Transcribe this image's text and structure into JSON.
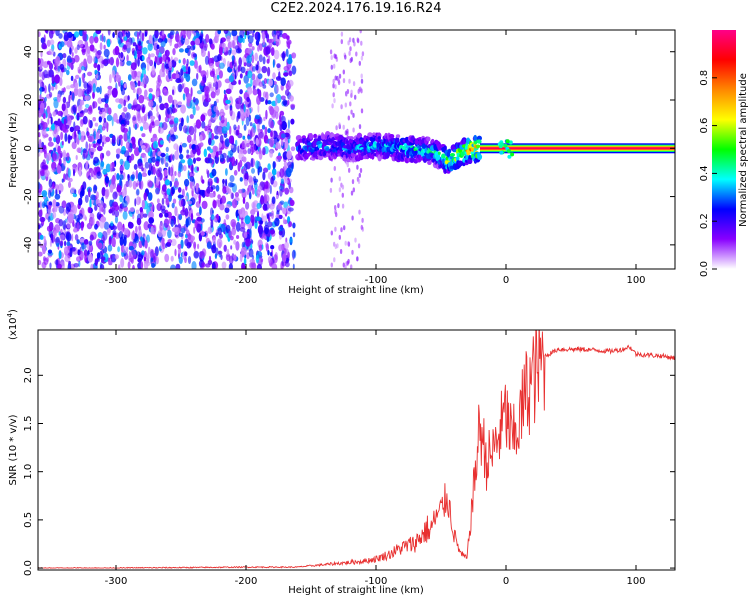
{
  "title": "C2E2.2024.176.19.16.R24",
  "chart_data": [
    {
      "type": "heatmap",
      "xlabel": "Height of straight line (km)",
      "ylabel": "Frequency (Hz)",
      "xlim": [
        -360,
        130
      ],
      "ylim": [
        -50,
        49
      ],
      "xticks": [
        -300,
        -200,
        -100,
        0,
        100
      ],
      "xtick_labels": [
        "-300",
        "-200",
        "-100",
        "0",
        "100"
      ],
      "yticks": [
        -40,
        -20,
        0,
        20,
        40
      ],
      "ytick_labels": [
        "-40",
        "-20",
        "0",
        "20",
        "40"
      ],
      "noise_region_x": [
        -360,
        -163
      ],
      "signal_trace": {
        "x": [
          -160,
          -140,
          -120,
          -100,
          -80,
          -60,
          -50,
          -45,
          -40,
          -30,
          -20,
          -10,
          0,
          50,
          100,
          130
        ],
        "y": [
          0,
          1,
          0,
          1,
          0,
          -1,
          -3,
          -5,
          -4,
          -1,
          0,
          0,
          0,
          0,
          0,
          0
        ],
        "amplitude": [
          0.3,
          0.35,
          0.35,
          0.4,
          0.45,
          0.45,
          0.5,
          0.65,
          0.7,
          0.7,
          0.9,
          0.95,
          0.95,
          0.95,
          0.95,
          0.95
        ]
      },
      "colorbar": {
        "label": "Normalized spectral amplitude",
        "range": [
          0.0,
          1.0
        ],
        "ticks": [
          0.0,
          0.2,
          0.4,
          0.6,
          0.8
        ],
        "tick_labels": [
          "0.0",
          "0.2",
          "0.4",
          "0.6",
          "0.8"
        ],
        "colors": [
          "#ffffff",
          "#8800ff",
          "#0000ff",
          "#00ffff",
          "#00ff00",
          "#ffff00",
          "#ff8800",
          "#ff0000",
          "#ff0088"
        ]
      },
      "grid": false
    },
    {
      "type": "line",
      "xlabel": "Height of straight line (km)",
      "ylabel": "SNR (10 * v/v)",
      "y_multiplier_label": "(x10",
      "y_multiplier_exp": "4",
      "y_multiplier_close": ")",
      "xlim": [
        -360,
        130
      ],
      "ylim": [
        -0.02,
        2.47
      ],
      "xticks": [
        -300,
        -200,
        -100,
        0,
        100
      ],
      "xtick_labels": [
        "-300",
        "-200",
        "-100",
        "0",
        "100"
      ],
      "yticks": [
        0.0,
        0.5,
        1.0,
        1.5,
        2.0
      ],
      "ytick_labels": [
        "0.0",
        "0.5",
        "1.0",
        "1.5",
        "2.0"
      ],
      "series": [
        {
          "color": "#e83030",
          "x": [
            -360,
            -300,
            -200,
            -160,
            -140,
            -120,
            -110,
            -100,
            -90,
            -80,
            -70,
            -60,
            -55,
            -50,
            -45,
            -40,
            -35,
            -30,
            -25,
            -20,
            -15,
            -10,
            -5,
            0,
            5,
            10,
            15,
            20,
            25,
            30,
            40,
            50,
            60,
            70,
            80,
            90,
            95,
            100,
            110,
            120,
            130
          ],
          "y": [
            0.0,
            0.0,
            0.01,
            0.01,
            0.03,
            0.05,
            0.06,
            0.08,
            0.12,
            0.18,
            0.22,
            0.35,
            0.5,
            0.6,
            0.75,
            0.35,
            0.15,
            0.1,
            0.8,
            1.5,
            1.1,
            1.2,
            1.4,
            1.6,
            1.3,
            1.5,
            1.8,
            1.95,
            2.1,
            2.2,
            2.27,
            2.27,
            2.27,
            2.26,
            2.25,
            2.27,
            2.3,
            2.22,
            2.21,
            2.2,
            2.18
          ]
        }
      ],
      "grid": false
    }
  ]
}
